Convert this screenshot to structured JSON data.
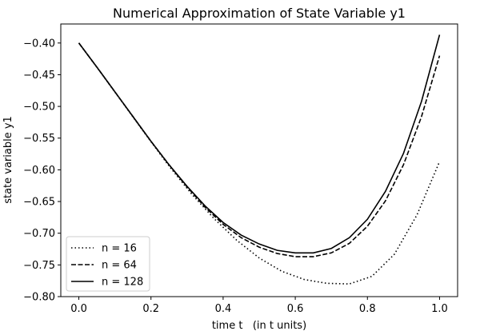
{
  "chart_data": {
    "type": "line",
    "title": "Numerical Approximation of State Variable y1",
    "xlabel": "time t   (in t units)",
    "ylabel": "state variable y1",
    "xlim": [
      -0.05,
      1.05
    ],
    "ylim": [
      -0.8,
      -0.37
    ],
    "xticks": [
      "0.0",
      "0.2",
      "0.4",
      "0.6",
      "0.8",
      "1.0"
    ],
    "yticks": [
      "-0.80",
      "-0.75",
      "-0.70",
      "-0.65",
      "-0.60",
      "-0.55",
      "-0.50",
      "-0.45",
      "-0.40"
    ],
    "grid": false,
    "legend_position": "lower-left",
    "series": [
      {
        "name": "n = 16",
        "style": "dotted",
        "color": "#000000",
        "x": [
          0.0,
          0.0625,
          0.125,
          0.1875,
          0.25,
          0.3125,
          0.375,
          0.4375,
          0.5,
          0.5625,
          0.625,
          0.6875,
          0.75,
          0.8125,
          0.875,
          0.9375,
          1.0
        ],
        "y": [
          -0.4,
          -0.448,
          -0.497,
          -0.546,
          -0.594,
          -0.638,
          -0.677,
          -0.711,
          -0.739,
          -0.76,
          -0.773,
          -0.779,
          -0.78,
          -0.768,
          -0.733,
          -0.671,
          -0.587
        ]
      },
      {
        "name": "n = 64",
        "style": "dashed",
        "color": "#000000",
        "x": [
          0.0,
          0.05,
          0.1,
          0.15,
          0.2,
          0.25,
          0.3,
          0.35,
          0.4,
          0.45,
          0.5,
          0.55,
          0.6,
          0.65,
          0.7,
          0.75,
          0.8,
          0.85,
          0.9,
          0.95,
          1.0
        ],
        "y": [
          -0.4,
          -0.438,
          -0.477,
          -0.516,
          -0.555,
          -0.592,
          -0.627,
          -0.659,
          -0.686,
          -0.707,
          -0.722,
          -0.732,
          -0.737,
          -0.737,
          -0.731,
          -0.716,
          -0.689,
          -0.649,
          -0.592,
          -0.516,
          -0.42
        ]
      },
      {
        "name": "n = 128",
        "style": "solid",
        "color": "#000000",
        "x": [
          0.0,
          0.05,
          0.1,
          0.15,
          0.2,
          0.25,
          0.3,
          0.35,
          0.4,
          0.45,
          0.5,
          0.55,
          0.6,
          0.65,
          0.7,
          0.75,
          0.8,
          0.85,
          0.9,
          0.95,
          1.0
        ],
        "y": [
          -0.4,
          -0.438,
          -0.477,
          -0.516,
          -0.555,
          -0.592,
          -0.626,
          -0.657,
          -0.683,
          -0.703,
          -0.717,
          -0.727,
          -0.731,
          -0.731,
          -0.724,
          -0.707,
          -0.678,
          -0.634,
          -0.574,
          -0.492,
          -0.387
        ]
      }
    ]
  }
}
